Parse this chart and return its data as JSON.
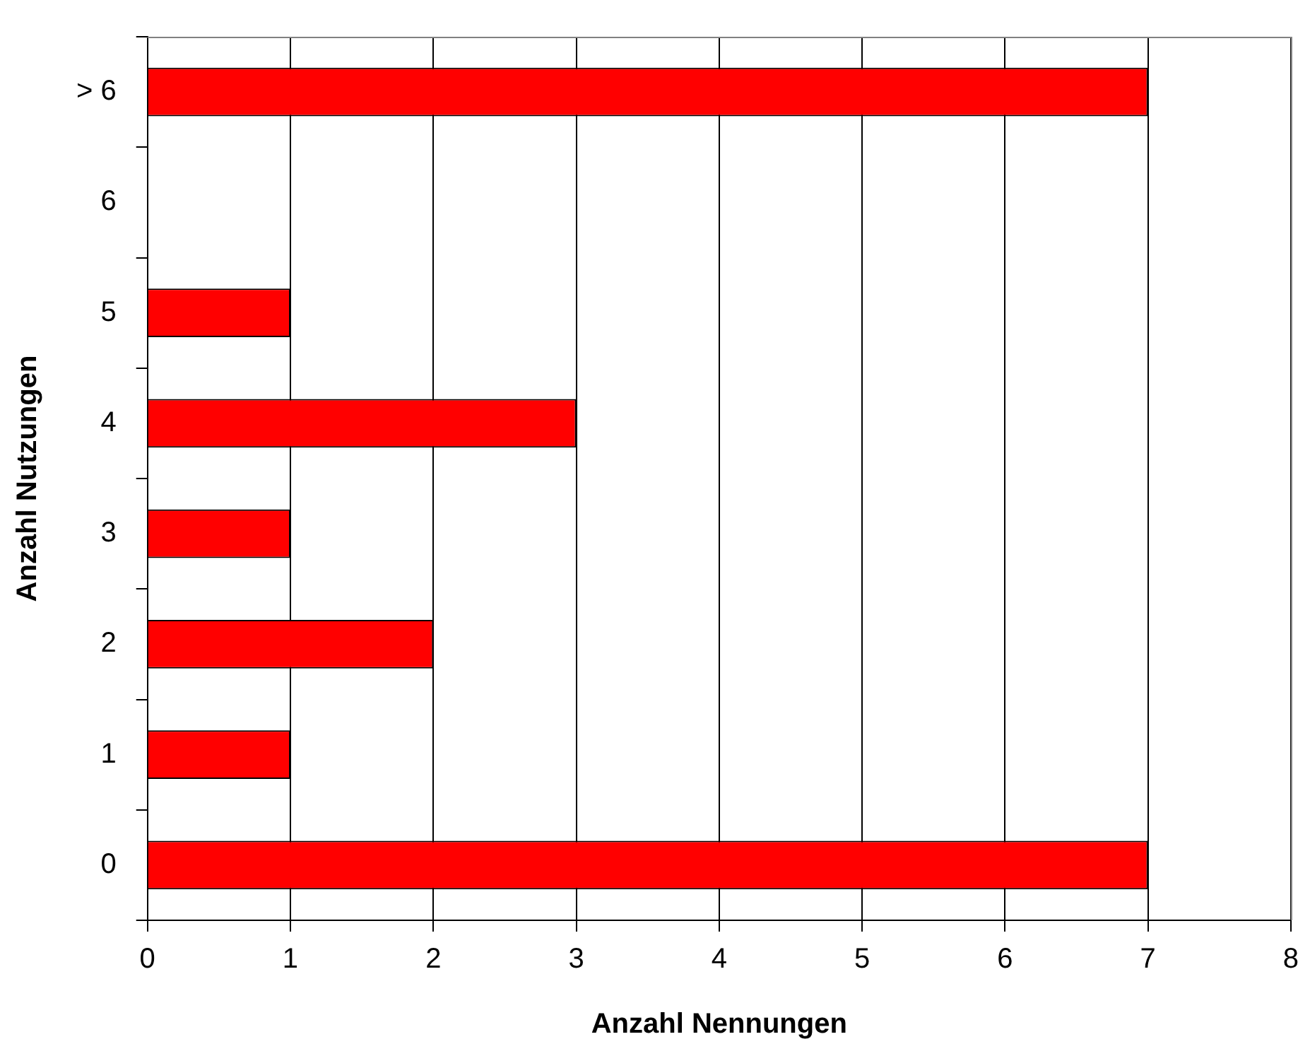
{
  "chart_data": {
    "type": "bar",
    "orientation": "horizontal",
    "xlabel": "Anzahl Nennungen",
    "ylabel": "Anzahl Nutzungen",
    "categories": [
      "> 6",
      "6",
      "5",
      "4",
      "3",
      "2",
      "1",
      "0"
    ],
    "values": [
      7,
      0,
      1,
      3,
      1,
      2,
      1,
      7
    ],
    "color": "#ff0000",
    "xlim": [
      0,
      8
    ],
    "xticks": [
      0,
      1,
      2,
      3,
      4,
      5,
      6,
      7,
      8
    ],
    "grid": "x"
  }
}
